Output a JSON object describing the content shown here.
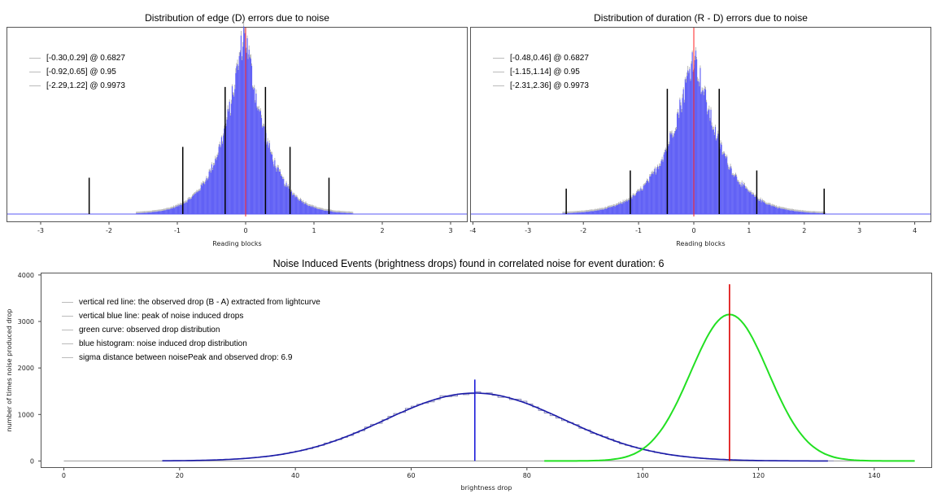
{
  "chart_data": [
    {
      "type": "bar",
      "title": "Distribution of edge (D) errors due to noise",
      "xlabel": "Reading blocks",
      "ylabel": "",
      "xlim": [
        -3.5,
        3.25
      ],
      "x_ticks": [
        -3,
        -2,
        -1,
        0,
        1,
        2,
        3
      ],
      "histogram": {
        "center": -0.02,
        "spread": 0.36,
        "peak": 1.0
      },
      "center_line_x": 0,
      "interval_lines": [
        {
          "x": -0.3,
          "height": 0.7
        },
        {
          "x": 0.29,
          "height": 0.7
        },
        {
          "x": -0.92,
          "height": 0.37
        },
        {
          "x": 0.65,
          "height": 0.37
        },
        {
          "x": -2.29,
          "height": 0.2
        },
        {
          "x": 1.22,
          "height": 0.2
        }
      ],
      "legend": [
        "[-0.30,0.29] @ 0.6827",
        "[-0.92,0.65] @ 0.95",
        "[-2.29,1.22] @ 0.9973"
      ],
      "colors": {
        "bars": "#5a5af5",
        "center_line": "#ff2020",
        "interval_lines": "#000000"
      }
    },
    {
      "type": "bar",
      "title": "Distribution of duration (R - D) errors due to noise",
      "xlabel": "Reading blocks",
      "ylabel": "",
      "xlim": [
        -4.05,
        4.3
      ],
      "x_ticks": [
        -4,
        -3,
        -2,
        -1,
        0,
        1,
        2,
        3,
        4
      ],
      "histogram": {
        "center": 0.0,
        "spread": 0.55,
        "peak": 0.88
      },
      "center_line_x": 0,
      "interval_lines": [
        {
          "x": -0.48,
          "height": 0.69
        },
        {
          "x": 0.46,
          "height": 0.69
        },
        {
          "x": -1.15,
          "height": 0.24
        },
        {
          "x": 1.14,
          "height": 0.24
        },
        {
          "x": -2.31,
          "height": 0.14
        },
        {
          "x": 2.36,
          "height": 0.14
        }
      ],
      "legend": [
        "[-0.48,0.46] @ 0.6827",
        "[-1.15,1.14] @ 0.95",
        "[-2.31,2.36] @ 0.9973"
      ],
      "colors": {
        "bars": "#5a5af5",
        "center_line": "#ff2020",
        "interval_lines": "#000000"
      }
    },
    {
      "type": "line",
      "title": "Noise Induced Events (brightness drops) found in correlated noise for event duration: 6",
      "xlabel": "brightness drop",
      "ylabel": "number of times noise produced drop",
      "xlim": [
        -4,
        150
      ],
      "ylim": [
        -150,
        4050
      ],
      "x_ticks": [
        0,
        20,
        40,
        60,
        80,
        100,
        120,
        140
      ],
      "y_ticks": [
        0,
        1000,
        2000,
        3000,
        4000
      ],
      "series": [
        {
          "name": "blue histogram: noise induced drop distribution",
          "kind": "step",
          "mean": 71,
          "sigma": 15.5,
          "peak": 1460,
          "x_range": [
            17,
            132
          ],
          "color": "#1a1aa8"
        },
        {
          "name": "green curve: observed drop distribution",
          "kind": "gaussian",
          "mean": 115,
          "sigma": 6.7,
          "peak": 3150,
          "x_range": [
            83,
            147
          ],
          "color": "#22e022"
        }
      ],
      "vertical_lines": [
        {
          "name": "vertical red line: the observed drop (B - A) extracted from lightcurve",
          "x": 115,
          "y_top": 3800,
          "color": "#dd0000"
        },
        {
          "name": "vertical blue line: peak of noise induced drops",
          "x": 71,
          "y_top": 1750,
          "color": "#1a1ad8"
        }
      ],
      "legend": [
        "vertical red line: the observed drop (B - A) extracted from lightcurve",
        "vertical blue line: peak of noise induced drops",
        "green curve: observed drop distribution",
        "blue histogram: noise induced drop distribution",
        "sigma distance between noisePeak and observed drop: 6.9"
      ]
    }
  ]
}
